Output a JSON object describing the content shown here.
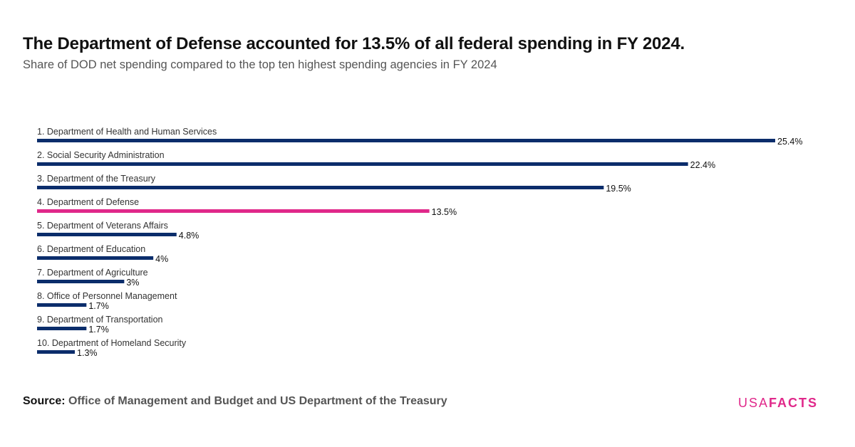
{
  "header": {
    "title": "The Department of Defense accounted for 13.5% of all federal spending in FY 2024.",
    "subtitle": "Share of DOD net spending compared to the top ten highest spending agencies in FY 2024"
  },
  "footer": {
    "source_key": "Source:",
    "source_value": "Office of Management and Budget and US Department of the Treasury",
    "logo_usa": "USA",
    "logo_facts": "FACTS"
  },
  "colors": {
    "bar_default": "#0b2d6b",
    "bar_highlight": "#e0288a"
  },
  "chart_data": {
    "type": "bar",
    "orientation": "horizontal",
    "title": "The Department of Defense accounted for 13.5% of all federal spending in FY 2024.",
    "subtitle": "Share of DOD net spending compared to the top ten highest spending agencies in FY 2024",
    "xlim": [
      0,
      25.4
    ],
    "unit": "%",
    "grid": false,
    "categories": [
      "1. Department of Health and Human Services",
      "2. Social Security Administration",
      "3. Department of the Treasury",
      "4. Department of Defense",
      "5. Department of Veterans Affairs",
      "6. Department of Education",
      "7. Department of Agriculture",
      "8. Office of Personnel Management",
      "9. Department of Transportation",
      "10. Department of Homeland Security"
    ],
    "values": [
      25.4,
      22.4,
      19.5,
      13.5,
      4.8,
      4,
      3,
      1.7,
      1.7,
      1.3
    ],
    "value_labels": [
      "25.4%",
      "22.4%",
      "19.5%",
      "13.5%",
      "4.8%",
      "4%",
      "3%",
      "1.7%",
      "1.7%",
      "1.3%"
    ],
    "highlight": "4. Department of Defense"
  }
}
